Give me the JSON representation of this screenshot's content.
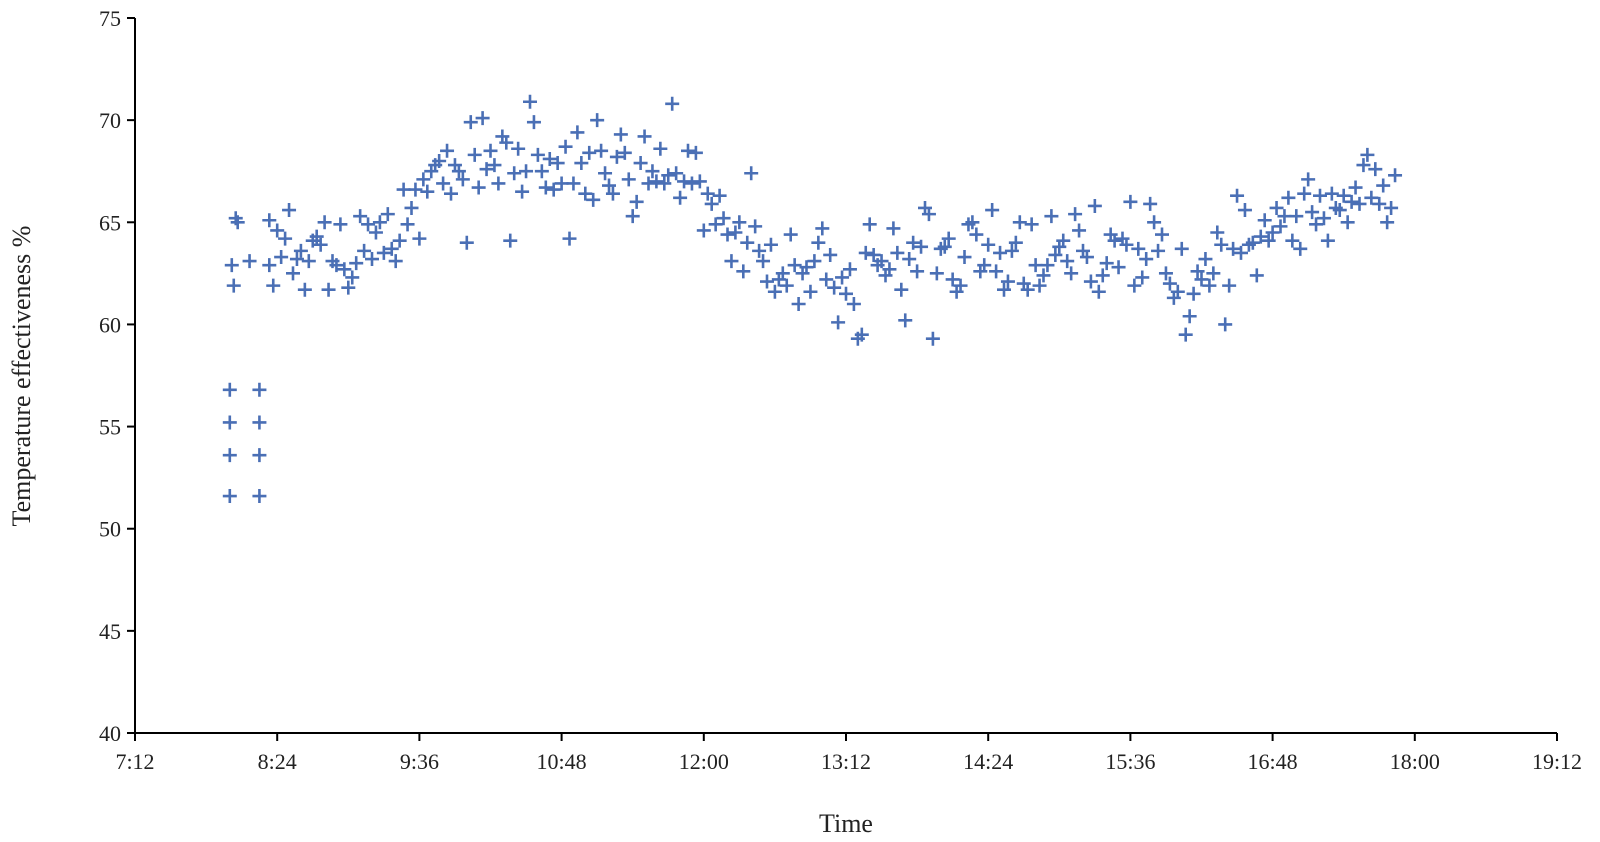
{
  "chart_data": {
    "type": "scatter",
    "title": "",
    "xlabel": "Time",
    "ylabel": "Temperature effectiveness  %",
    "xlim": [
      "7:12",
      "19:12"
    ],
    "ylim": [
      40,
      75
    ],
    "x_tick_labels": [
      "7:12",
      "8:24",
      "9:36",
      "10:48",
      "12:00",
      "13:12",
      "14:24",
      "15:36",
      "16:48",
      "18:00",
      "19:12"
    ],
    "y_tick_labels": [
      "40",
      "45",
      "50",
      "55",
      "60",
      "65",
      "70",
      "75"
    ],
    "marker": "plus",
    "color": "#4a6fb5",
    "grid": false,
    "legend": "none",
    "x_format": "time h:mm",
    "series": [
      {
        "points": [
          [
            "8:00",
            56.8
          ],
          [
            "8:00",
            55.2
          ],
          [
            "8:00",
            53.6
          ],
          [
            "8:00",
            51.6
          ],
          [
            "8:15",
            56.8
          ],
          [
            "8:15",
            55.2
          ],
          [
            "8:15",
            53.6
          ],
          [
            "8:15",
            51.6
          ],
          [
            "8:01",
            62.9
          ],
          [
            "8:02",
            61.9
          ],
          [
            "8:03",
            65.2
          ],
          [
            "8:04",
            65.0
          ],
          [
            "8:10",
            63.1
          ],
          [
            "8:20",
            65.1
          ],
          [
            "8:20",
            62.9
          ],
          [
            "8:22",
            61.9
          ],
          [
            "8:24",
            64.6
          ],
          [
            "8:26",
            63.3
          ],
          [
            "8:28",
            64.2
          ],
          [
            "8:30",
            65.6
          ],
          [
            "8:32",
            62.5
          ],
          [
            "8:34",
            63.2
          ],
          [
            "8:36",
            63.6
          ],
          [
            "8:38",
            61.7
          ],
          [
            "8:40",
            63.1
          ],
          [
            "8:42",
            64.1
          ],
          [
            "8:44",
            64.3
          ],
          [
            "8:46",
            63.9
          ],
          [
            "8:48",
            65.0
          ],
          [
            "8:50",
            61.7
          ],
          [
            "8:52",
            63.1
          ],
          [
            "8:54",
            62.9
          ],
          [
            "8:56",
            64.9
          ],
          [
            "8:58",
            62.7
          ],
          [
            "9:00",
            61.8
          ],
          [
            "9:02",
            62.3
          ],
          [
            "9:04",
            63.0
          ],
          [
            "9:06",
            65.3
          ],
          [
            "9:08",
            63.6
          ],
          [
            "9:10",
            64.9
          ],
          [
            "9:12",
            63.2
          ],
          [
            "9:14",
            64.5
          ],
          [
            "9:16",
            65.0
          ],
          [
            "9:18",
            63.5
          ],
          [
            "9:20",
            65.4
          ],
          [
            "9:22",
            63.7
          ],
          [
            "9:24",
            63.1
          ],
          [
            "9:26",
            64.1
          ],
          [
            "9:28",
            66.6
          ],
          [
            "9:30",
            64.9
          ],
          [
            "9:32",
            65.7
          ],
          [
            "9:34",
            66.6
          ],
          [
            "9:36",
            64.2
          ],
          [
            "9:38",
            67.1
          ],
          [
            "9:40",
            66.5
          ],
          [
            "9:42",
            67.5
          ],
          [
            "9:44",
            67.8
          ],
          [
            "9:46",
            68.0
          ],
          [
            "9:48",
            66.9
          ],
          [
            "9:50",
            68.5
          ],
          [
            "9:52",
            66.4
          ],
          [
            "9:54",
            67.8
          ],
          [
            "9:56",
            67.5
          ],
          [
            "9:58",
            67.1
          ],
          [
            "10:00",
            64.0
          ],
          [
            "10:02",
            69.9
          ],
          [
            "10:04",
            68.3
          ],
          [
            "10:06",
            66.7
          ],
          [
            "10:08",
            70.1
          ],
          [
            "10:10",
            67.6
          ],
          [
            "10:12",
            68.5
          ],
          [
            "10:14",
            67.8
          ],
          [
            "10:16",
            66.9
          ],
          [
            "10:18",
            69.2
          ],
          [
            "10:20",
            68.9
          ],
          [
            "10:22",
            64.1
          ],
          [
            "10:24",
            67.4
          ],
          [
            "10:26",
            68.6
          ],
          [
            "10:28",
            66.5
          ],
          [
            "10:30",
            67.5
          ],
          [
            "10:32",
            70.9
          ],
          [
            "10:34",
            69.9
          ],
          [
            "10:36",
            68.3
          ],
          [
            "10:38",
            67.5
          ],
          [
            "10:40",
            66.7
          ],
          [
            "10:42",
            68.1
          ],
          [
            "10:44",
            66.6
          ],
          [
            "10:46",
            67.9
          ],
          [
            "10:48",
            66.9
          ],
          [
            "10:50",
            68.7
          ],
          [
            "10:52",
            64.2
          ],
          [
            "10:54",
            66.9
          ],
          [
            "10:56",
            69.4
          ],
          [
            "10:58",
            67.9
          ],
          [
            "11:00",
            66.4
          ],
          [
            "11:02",
            68.4
          ],
          [
            "11:04",
            66.1
          ],
          [
            "11:06",
            70.0
          ],
          [
            "11:08",
            68.5
          ],
          [
            "11:10",
            67.4
          ],
          [
            "11:12",
            66.8
          ],
          [
            "11:14",
            66.4
          ],
          [
            "11:16",
            68.2
          ],
          [
            "11:18",
            69.3
          ],
          [
            "11:20",
            68.4
          ],
          [
            "11:22",
            67.1
          ],
          [
            "11:24",
            65.3
          ],
          [
            "11:26",
            66.0
          ],
          [
            "11:28",
            67.9
          ],
          [
            "11:30",
            69.2
          ],
          [
            "11:32",
            66.9
          ],
          [
            "11:34",
            67.5
          ],
          [
            "11:36",
            67.0
          ],
          [
            "11:38",
            68.6
          ],
          [
            "11:40",
            66.9
          ],
          [
            "11:42",
            67.3
          ],
          [
            "11:44",
            70.8
          ],
          [
            "11:46",
            67.4
          ],
          [
            "11:48",
            66.2
          ],
          [
            "11:50",
            67.0
          ],
          [
            "11:52",
            68.5
          ],
          [
            "11:54",
            66.9
          ],
          [
            "11:56",
            68.4
          ],
          [
            "11:58",
            67.0
          ],
          [
            "12:00",
            64.6
          ],
          [
            "12:02",
            66.4
          ],
          [
            "12:04",
            65.9
          ],
          [
            "12:06",
            64.9
          ],
          [
            "12:08",
            66.3
          ],
          [
            "12:10",
            65.2
          ],
          [
            "12:12",
            64.4
          ],
          [
            "12:14",
            63.1
          ],
          [
            "12:16",
            64.5
          ],
          [
            "12:18",
            65.0
          ],
          [
            "12:20",
            62.6
          ],
          [
            "12:22",
            64.0
          ],
          [
            "12:24",
            67.4
          ],
          [
            "12:26",
            64.8
          ],
          [
            "12:28",
            63.6
          ],
          [
            "12:30",
            63.1
          ],
          [
            "12:32",
            62.1
          ],
          [
            "12:34",
            63.9
          ],
          [
            "12:36",
            61.6
          ],
          [
            "12:38",
            62.2
          ],
          [
            "12:40",
            62.5
          ],
          [
            "12:42",
            61.9
          ],
          [
            "12:44",
            64.4
          ],
          [
            "12:46",
            62.9
          ],
          [
            "12:48",
            61.0
          ],
          [
            "12:50",
            62.5
          ],
          [
            "12:52",
            62.8
          ],
          [
            "12:54",
            61.6
          ],
          [
            "12:56",
            63.1
          ],
          [
            "12:58",
            64.0
          ],
          [
            "13:00",
            64.7
          ],
          [
            "13:02",
            62.2
          ],
          [
            "13:04",
            63.4
          ],
          [
            "13:06",
            61.8
          ],
          [
            "13:08",
            60.1
          ],
          [
            "13:10",
            62.3
          ],
          [
            "13:12",
            61.5
          ],
          [
            "13:14",
            62.7
          ],
          [
            "13:16",
            61.0
          ],
          [
            "13:18",
            59.3
          ],
          [
            "13:20",
            59.5
          ],
          [
            "13:22",
            63.5
          ],
          [
            "13:24",
            64.9
          ],
          [
            "13:26",
            63.4
          ],
          [
            "13:28",
            62.9
          ],
          [
            "13:30",
            63.1
          ],
          [
            "13:32",
            62.4
          ],
          [
            "13:34",
            62.7
          ],
          [
            "13:36",
            64.7
          ],
          [
            "13:38",
            63.5
          ],
          [
            "13:40",
            61.7
          ],
          [
            "13:42",
            60.2
          ],
          [
            "13:44",
            63.2
          ],
          [
            "13:46",
            64.0
          ],
          [
            "13:48",
            62.6
          ],
          [
            "13:50",
            63.8
          ],
          [
            "13:52",
            65.7
          ],
          [
            "13:54",
            65.4
          ],
          [
            "13:56",
            59.3
          ],
          [
            "13:58",
            62.5
          ],
          [
            "14:00",
            63.7
          ],
          [
            "14:02",
            63.8
          ],
          [
            "14:04",
            64.2
          ],
          [
            "14:06",
            62.2
          ],
          [
            "14:08",
            61.6
          ],
          [
            "14:10",
            61.9
          ],
          [
            "14:12",
            63.3
          ],
          [
            "14:14",
            64.9
          ],
          [
            "14:16",
            65.0
          ],
          [
            "14:18",
            64.4
          ],
          [
            "14:20",
            62.6
          ],
          [
            "14:22",
            62.9
          ],
          [
            "14:24",
            63.9
          ],
          [
            "14:26",
            65.6
          ],
          [
            "14:28",
            62.6
          ],
          [
            "14:30",
            63.5
          ],
          [
            "14:32",
            61.7
          ],
          [
            "14:34",
            62.1
          ],
          [
            "14:36",
            63.6
          ],
          [
            "14:38",
            64.0
          ],
          [
            "14:40",
            65.0
          ],
          [
            "14:42",
            62.0
          ],
          [
            "14:44",
            61.7
          ],
          [
            "14:46",
            64.9
          ],
          [
            "14:48",
            62.9
          ],
          [
            "14:50",
            61.9
          ],
          [
            "14:52",
            62.4
          ],
          [
            "14:54",
            62.9
          ],
          [
            "14:56",
            65.3
          ],
          [
            "14:58",
            63.4
          ],
          [
            "15:00",
            63.8
          ],
          [
            "15:02",
            64.1
          ],
          [
            "15:04",
            63.1
          ],
          [
            "15:06",
            62.5
          ],
          [
            "15:08",
            65.4
          ],
          [
            "15:10",
            64.6
          ],
          [
            "15:12",
            63.6
          ],
          [
            "15:14",
            63.3
          ],
          [
            "15:16",
            62.1
          ],
          [
            "15:18",
            65.8
          ],
          [
            "15:20",
            61.6
          ],
          [
            "15:22",
            62.4
          ],
          [
            "15:24",
            63.0
          ],
          [
            "15:26",
            64.4
          ],
          [
            "15:28",
            64.1
          ],
          [
            "15:30",
            62.8
          ],
          [
            "15:32",
            64.2
          ],
          [
            "15:34",
            63.9
          ],
          [
            "15:36",
            66.0
          ],
          [
            "15:38",
            61.9
          ],
          [
            "15:40",
            63.7
          ],
          [
            "15:42",
            62.3
          ],
          [
            "15:44",
            63.2
          ],
          [
            "15:46",
            65.9
          ],
          [
            "15:48",
            65.0
          ],
          [
            "15:50",
            63.6
          ],
          [
            "15:52",
            64.4
          ],
          [
            "15:54",
            62.5
          ],
          [
            "15:56",
            62.0
          ],
          [
            "15:58",
            61.3
          ],
          [
            "16:00",
            61.6
          ],
          [
            "16:02",
            63.7
          ],
          [
            "16:04",
            59.5
          ],
          [
            "16:06",
            60.4
          ],
          [
            "16:08",
            61.5
          ],
          [
            "16:10",
            62.6
          ],
          [
            "16:12",
            62.2
          ],
          [
            "16:14",
            63.2
          ],
          [
            "16:16",
            61.9
          ],
          [
            "16:18",
            62.5
          ],
          [
            "16:20",
            64.5
          ],
          [
            "16:22",
            63.9
          ],
          [
            "16:24",
            60.0
          ],
          [
            "16:26",
            61.9
          ],
          [
            "16:28",
            63.7
          ],
          [
            "16:30",
            66.3
          ],
          [
            "16:32",
            63.5
          ],
          [
            "16:34",
            65.6
          ],
          [
            "16:36",
            63.9
          ],
          [
            "16:38",
            64.0
          ],
          [
            "16:40",
            62.4
          ],
          [
            "16:42",
            64.3
          ],
          [
            "16:44",
            65.1
          ],
          [
            "16:46",
            64.1
          ],
          [
            "16:48",
            64.5
          ],
          [
            "16:50",
            65.7
          ],
          [
            "16:52",
            64.8
          ],
          [
            "16:54",
            65.3
          ],
          [
            "16:56",
            66.2
          ],
          [
            "16:58",
            64.1
          ],
          [
            "17:00",
            65.3
          ],
          [
            "17:02",
            63.7
          ],
          [
            "17:04",
            66.4
          ],
          [
            "17:06",
            67.1
          ],
          [
            "17:08",
            65.5
          ],
          [
            "17:10",
            64.9
          ],
          [
            "17:12",
            66.3
          ],
          [
            "17:14",
            65.2
          ],
          [
            "17:16",
            64.1
          ],
          [
            "17:18",
            66.4
          ],
          [
            "17:20",
            65.7
          ],
          [
            "17:22",
            65.6
          ],
          [
            "17:24",
            66.3
          ],
          [
            "17:26",
            65.0
          ],
          [
            "17:28",
            66.0
          ],
          [
            "17:30",
            66.7
          ],
          [
            "17:32",
            65.9
          ],
          [
            "17:34",
            67.8
          ],
          [
            "17:36",
            68.3
          ],
          [
            "17:38",
            66.2
          ],
          [
            "17:40",
            67.6
          ],
          [
            "17:42",
            65.9
          ],
          [
            "17:44",
            66.8
          ],
          [
            "17:46",
            65.0
          ],
          [
            "17:48",
            65.7
          ],
          [
            "17:50",
            67.3
          ]
        ]
      }
    ]
  }
}
